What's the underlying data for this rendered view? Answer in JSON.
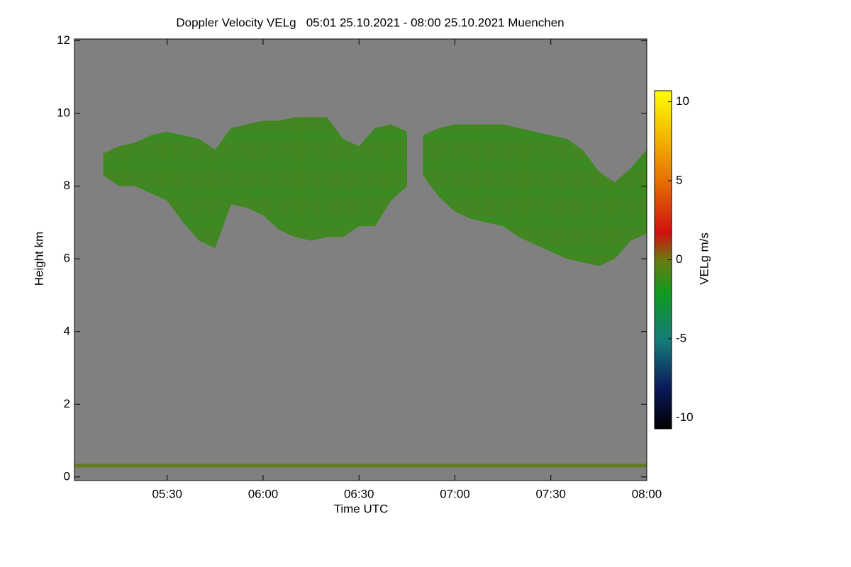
{
  "chart_data": {
    "type": "time-height",
    "title": "Doppler Velocity VELg   05:01 25.10.2021 - 08:00 25.10.2021 Muenchen",
    "x_label": "Time UTC",
    "y_label": "Height km",
    "xlim": [
      "05:01",
      "08:00"
    ],
    "xticks": [
      "05:30",
      "06:00",
      "06:30",
      "07:00",
      "07:30",
      "08:00"
    ],
    "ylim": [
      -0.1,
      12.05
    ],
    "yticks": [
      0,
      2,
      4,
      6,
      8,
      10,
      12
    ],
    "background": "#808080",
    "layers": [
      {
        "color": "#3f8a1f",
        "x": [
          "05:10",
          "05:15",
          "05:20",
          "05:25",
          "05:30",
          "05:35",
          "05:40",
          "05:45",
          "05:50",
          "05:55",
          "06:00",
          "06:05",
          "06:10",
          "06:15",
          "06:20",
          "06:25",
          "06:30",
          "06:35",
          "06:40",
          "06:45",
          "06:48",
          "06:50",
          "06:55",
          "07:00",
          "07:05",
          "07:10",
          "07:15",
          "07:20",
          "07:25",
          "07:30",
          "07:35",
          "07:40",
          "07:45",
          "07:50",
          "07:55",
          "08:00"
        ],
        "top": [
          8.9,
          9.1,
          9.2,
          9.4,
          9.5,
          9.4,
          9.3,
          9.0,
          9.6,
          9.7,
          9.8,
          9.8,
          9.9,
          9.9,
          9.9,
          9.3,
          9.1,
          9.6,
          9.7,
          9.5,
          null,
          9.4,
          9.6,
          9.7,
          9.7,
          9.7,
          9.7,
          9.6,
          9.5,
          9.4,
          9.3,
          9.0,
          8.4,
          8.1,
          8.5,
          9.0
        ],
        "base": [
          8.3,
          8.0,
          8.0,
          7.8,
          7.6,
          7.0,
          6.5,
          6.3,
          7.5,
          7.4,
          7.2,
          6.8,
          6.6,
          6.5,
          6.6,
          6.6,
          6.9,
          6.9,
          7.6,
          8.0,
          null,
          8.3,
          7.7,
          7.3,
          7.1,
          7.0,
          6.9,
          6.6,
          6.4,
          6.2,
          6.0,
          5.9,
          5.8,
          6.0,
          6.5,
          6.7
        ]
      },
      {
        "color": "#6b7a1c",
        "x": [
          "05:01",
          "08:00"
        ],
        "top": [
          0.36,
          0.36
        ],
        "base": [
          0.26,
          0.26
        ]
      }
    ],
    "colorbar": {
      "label": "VELg m/s",
      "clim": [
        -10.7,
        10.7
      ],
      "ticks": [
        -10,
        -5,
        0,
        5,
        10
      ]
    }
  }
}
